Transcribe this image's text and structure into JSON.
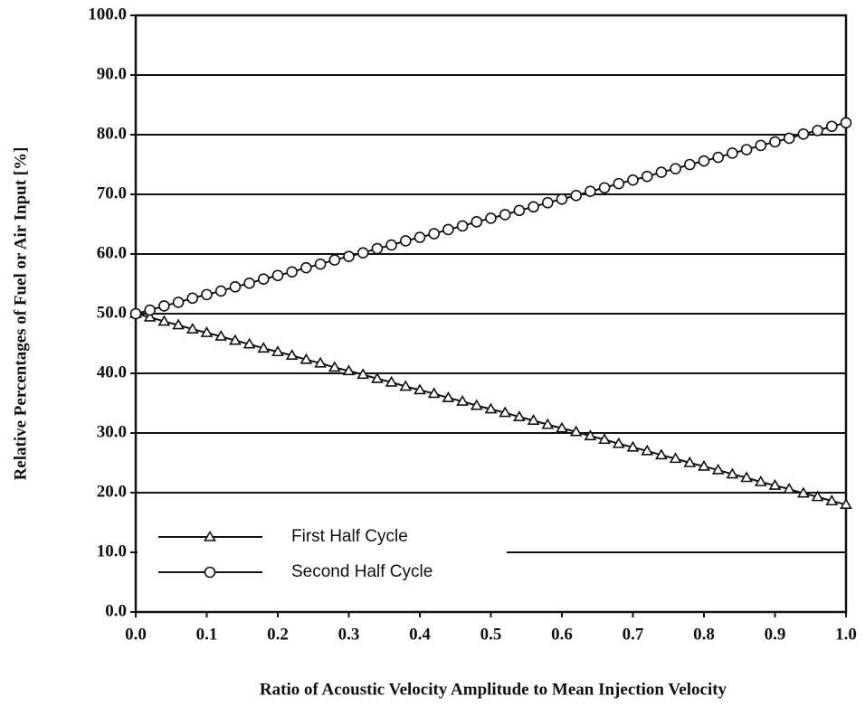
{
  "chart_data": {
    "type": "line",
    "xlabel": "Ratio of Acoustic Velocity Amplitude to Mean Injection Velocity",
    "ylabel": "Relative Percentages of Fuel or Air Input [%]",
    "x": [
      0,
      0.02,
      0.04,
      0.06,
      0.08,
      0.1,
      0.12,
      0.14,
      0.16,
      0.18,
      0.2,
      0.22,
      0.24,
      0.26,
      0.28,
      0.3,
      0.32,
      0.34,
      0.36,
      0.38,
      0.4,
      0.42,
      0.44,
      0.46,
      0.48,
      0.5,
      0.52,
      0.54,
      0.56,
      0.58,
      0.6,
      0.62,
      0.64,
      0.66,
      0.68,
      0.7,
      0.72,
      0.74,
      0.76,
      0.78,
      0.8,
      0.82,
      0.84,
      0.86,
      0.88,
      0.9,
      0.92,
      0.94,
      0.96,
      0.98,
      1
    ],
    "series": [
      {
        "name": "First Half Cycle",
        "color": "#111111",
        "marker": "triangle",
        "values": [
          50.0,
          49.4,
          48.7,
          48.1,
          47.4,
          46.8,
          46.2,
          45.5,
          44.9,
          44.2,
          43.6,
          43.0,
          42.3,
          41.7,
          41.0,
          40.4,
          39.8,
          39.1,
          38.5,
          37.8,
          37.2,
          36.6,
          35.9,
          35.3,
          34.6,
          34.0,
          33.4,
          32.7,
          32.1,
          31.4,
          30.8,
          30.2,
          29.5,
          28.9,
          28.2,
          27.6,
          27.0,
          26.3,
          25.7,
          25.0,
          24.4,
          23.8,
          23.1,
          22.5,
          21.8,
          21.2,
          20.6,
          19.9,
          19.3,
          18.6,
          18.0
        ]
      },
      {
        "name": "Second Half Cycle",
        "color": "#111111",
        "marker": "circle",
        "values": [
          50.0,
          50.6,
          51.3,
          51.9,
          52.6,
          53.2,
          53.8,
          54.5,
          55.1,
          55.8,
          56.4,
          57.0,
          57.7,
          58.3,
          59.0,
          59.6,
          60.2,
          60.9,
          61.5,
          62.2,
          62.8,
          63.4,
          64.1,
          64.7,
          65.4,
          66.0,
          66.6,
          67.3,
          67.9,
          68.6,
          69.2,
          69.8,
          70.5,
          71.1,
          71.8,
          72.4,
          73.0,
          73.7,
          74.3,
          75.0,
          75.6,
          76.2,
          76.9,
          77.5,
          78.2,
          78.8,
          79.4,
          80.1,
          80.7,
          81.4,
          82.0
        ]
      }
    ],
    "xlim": [
      0,
      1
    ],
    "ylim": [
      0,
      100
    ],
    "xticks": [
      {
        "value": 0,
        "label": "0.0"
      },
      {
        "value": 0.1,
        "label": "0.1"
      },
      {
        "value": 0.2,
        "label": "0.2"
      },
      {
        "value": 0.3,
        "label": "0.3"
      },
      {
        "value": 0.4,
        "label": "0.4"
      },
      {
        "value": 0.5,
        "label": "0.5"
      },
      {
        "value": 0.6,
        "label": "0.6"
      },
      {
        "value": 0.7,
        "label": "0.7"
      },
      {
        "value": 0.8,
        "label": "0.8"
      },
      {
        "value": 0.9,
        "label": "0.9"
      },
      {
        "value": 1,
        "label": "1.0"
      }
    ],
    "yticks": [
      {
        "value": 0,
        "label": "0.0"
      },
      {
        "value": 10,
        "label": "10.0"
      },
      {
        "value": 20,
        "label": "20.0"
      },
      {
        "value": 30,
        "label": "30.0"
      },
      {
        "value": 40,
        "label": "40.0"
      },
      {
        "value": 50,
        "label": "50.0"
      },
      {
        "value": 60,
        "label": "60.0"
      },
      {
        "value": 70,
        "label": "70.0"
      },
      {
        "value": 80,
        "label": "80.0"
      },
      {
        "value": 90,
        "label": "90.0"
      },
      {
        "value": 100,
        "label": "100.0"
      }
    ],
    "grid": true,
    "legend": "lower left"
  }
}
